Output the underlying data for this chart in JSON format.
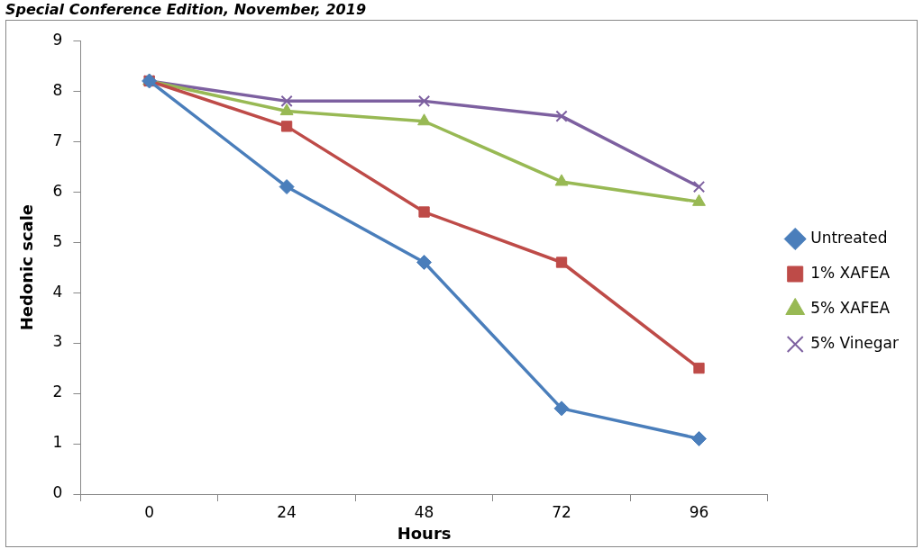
{
  "chart_data": {
    "type": "line",
    "annotations": [
      "Special Conference Edition, November, 2019"
    ],
    "xlabel": "Hours",
    "ylabel": "Hedonic scale",
    "categories": [
      "0",
      "24",
      "48",
      "72",
      "96"
    ],
    "ylim": [
      0,
      9
    ],
    "yticks": [
      0,
      1,
      2,
      3,
      4,
      5,
      6,
      7,
      8,
      9
    ],
    "grid": false,
    "legend": "right",
    "line_style": "solid",
    "series": [
      {
        "name": "Untreated",
        "color": "#4a7ebb",
        "marker": "diamond",
        "values": [
          8.2,
          6.1,
          4.6,
          1.7,
          1.1
        ]
      },
      {
        "name": "1% XAFEA",
        "color": "#be4b48",
        "marker": "square",
        "values": [
          8.2,
          7.3,
          5.6,
          4.6,
          2.5
        ]
      },
      {
        "name": "5% XAFEA",
        "color": "#98b954",
        "marker": "triangle",
        "values": [
          8.2,
          7.6,
          7.4,
          6.2,
          5.8
        ]
      },
      {
        "name": "5% Vinegar",
        "color": "#7d60a0",
        "marker": "cross",
        "values": [
          8.2,
          7.8,
          7.8,
          7.5,
          6.1
        ]
      }
    ]
  }
}
